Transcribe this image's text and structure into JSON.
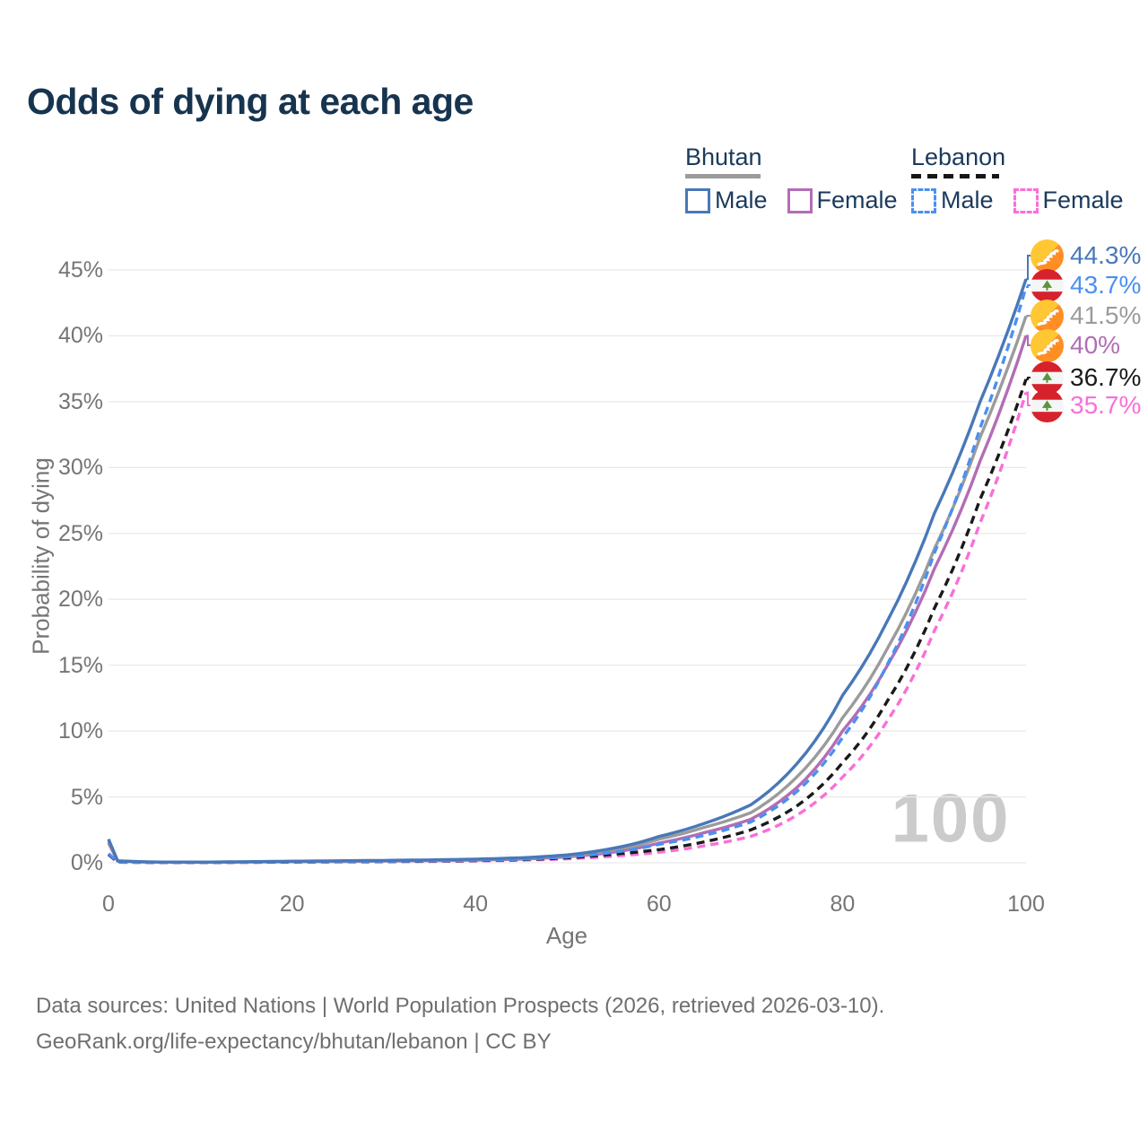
{
  "title": "Odds of dying at each age",
  "legend": {
    "groups": [
      {
        "name": "Bhutan",
        "items": [
          {
            "label": "Male"
          },
          {
            "label": "Female"
          }
        ]
      },
      {
        "name": "Lebanon",
        "items": [
          {
            "label": "Male"
          },
          {
            "label": "Female"
          }
        ]
      }
    ]
  },
  "axes": {
    "x_label": "Age",
    "y_label": "Probability of dying"
  },
  "watermark": "100",
  "footer": {
    "line1": "Data sources: United Nations | World Population Prospects (2026, retrieved 2026-03-10).",
    "line2": "GeoRank.org/life-expectancy/bhutan/lebanon | CC BY"
  },
  "colors": {
    "title": "#17344f",
    "legend_text": "#1b3a5c",
    "axis_text": "#757575",
    "gridline": "#e9e9e9",
    "watermark": "#cbcbcb"
  },
  "chart_data": {
    "type": "line",
    "title": "Odds of dying at each age",
    "xlabel": "Age",
    "ylabel": "Probability of dying",
    "xlim": [
      0,
      100
    ],
    "ylim_pct": [
      0,
      46
    ],
    "x_ticks": [
      0,
      20,
      40,
      60,
      80,
      100
    ],
    "y_ticks_pct": [
      0,
      5,
      10,
      15,
      20,
      25,
      30,
      35,
      40,
      45
    ],
    "y_tick_suffix": "%",
    "grid": "horizontal",
    "legend_position": "top-right",
    "ages": [
      0,
      1,
      5,
      10,
      15,
      20,
      25,
      30,
      35,
      40,
      45,
      50,
      55,
      60,
      65,
      70,
      75,
      80,
      85,
      90,
      95,
      100
    ],
    "series": [
      {
        "name": "Bhutan Male",
        "country": "Bhutan",
        "sex": "male",
        "flag": "bhutan",
        "color": "#4878b8",
        "dashed": false,
        "end_value": 44.3,
        "end_label": "44.3%",
        "values": [
          1.8,
          0.15,
          0.06,
          0.05,
          0.08,
          0.12,
          0.15,
          0.18,
          0.22,
          0.28,
          0.38,
          0.6,
          1.1,
          2.0,
          3.0,
          4.4,
          7.5,
          12.7,
          18.5,
          26.5,
          35.0,
          44.3
        ]
      },
      {
        "name": "Lebanon Male",
        "country": "Lebanon",
        "sex": "male",
        "flag": "lebanon",
        "color": "#4a90f2",
        "dashed": true,
        "end_value": 43.7,
        "end_label": "43.7%",
        "values": [
          0.7,
          0.06,
          0.03,
          0.03,
          0.05,
          0.08,
          0.1,
          0.12,
          0.15,
          0.2,
          0.28,
          0.45,
          0.8,
          1.4,
          2.1,
          3.1,
          5.4,
          9.5,
          15.2,
          23.5,
          33.0,
          43.7
        ]
      },
      {
        "name": "Bhutan",
        "country": "Bhutan",
        "sex": "all",
        "flag": "bhutan",
        "color": "#9b9b9b",
        "dashed": false,
        "end_value": 41.5,
        "end_label": "41.5%",
        "values": [
          1.65,
          0.13,
          0.05,
          0.045,
          0.07,
          0.1,
          0.13,
          0.15,
          0.19,
          0.24,
          0.33,
          0.52,
          0.95,
          1.8,
          2.7,
          3.8,
          6.5,
          11.0,
          16.4,
          23.8,
          32.3,
          41.5
        ]
      },
      {
        "name": "Bhutan Female",
        "country": "Bhutan",
        "sex": "female",
        "flag": "bhutan",
        "color": "#b26db5",
        "dashed": false,
        "end_value": 40,
        "end_label": "40%",
        "values": [
          1.5,
          0.12,
          0.05,
          0.04,
          0.06,
          0.08,
          0.1,
          0.13,
          0.16,
          0.2,
          0.28,
          0.45,
          0.8,
          1.5,
          2.3,
          3.3,
          5.7,
          10.0,
          15.1,
          22.3,
          30.5,
          40.0
        ]
      },
      {
        "name": "Lebanon",
        "country": "Lebanon",
        "sex": "all",
        "flag": "lebanon",
        "color": "#1a1a1a",
        "dashed": true,
        "end_value": 36.7,
        "end_label": "36.7%",
        "values": [
          0.65,
          0.05,
          0.03,
          0.03,
          0.04,
          0.06,
          0.08,
          0.1,
          0.13,
          0.17,
          0.24,
          0.38,
          0.65,
          1.0,
          1.6,
          2.5,
          4.3,
          7.6,
          12.4,
          19.3,
          27.6,
          36.7
        ]
      },
      {
        "name": "Lebanon Female",
        "country": "Lebanon",
        "sex": "female",
        "flag": "lebanon",
        "color": "#fb6ed8",
        "dashed": true,
        "end_value": 35.7,
        "end_label": "35.7%",
        "values": [
          0.6,
          0.05,
          0.02,
          0.02,
          0.03,
          0.05,
          0.06,
          0.08,
          0.1,
          0.14,
          0.2,
          0.3,
          0.5,
          0.8,
          1.3,
          2.0,
          3.6,
          6.5,
          10.9,
          17.6,
          25.8,
          35.7
        ]
      }
    ]
  }
}
